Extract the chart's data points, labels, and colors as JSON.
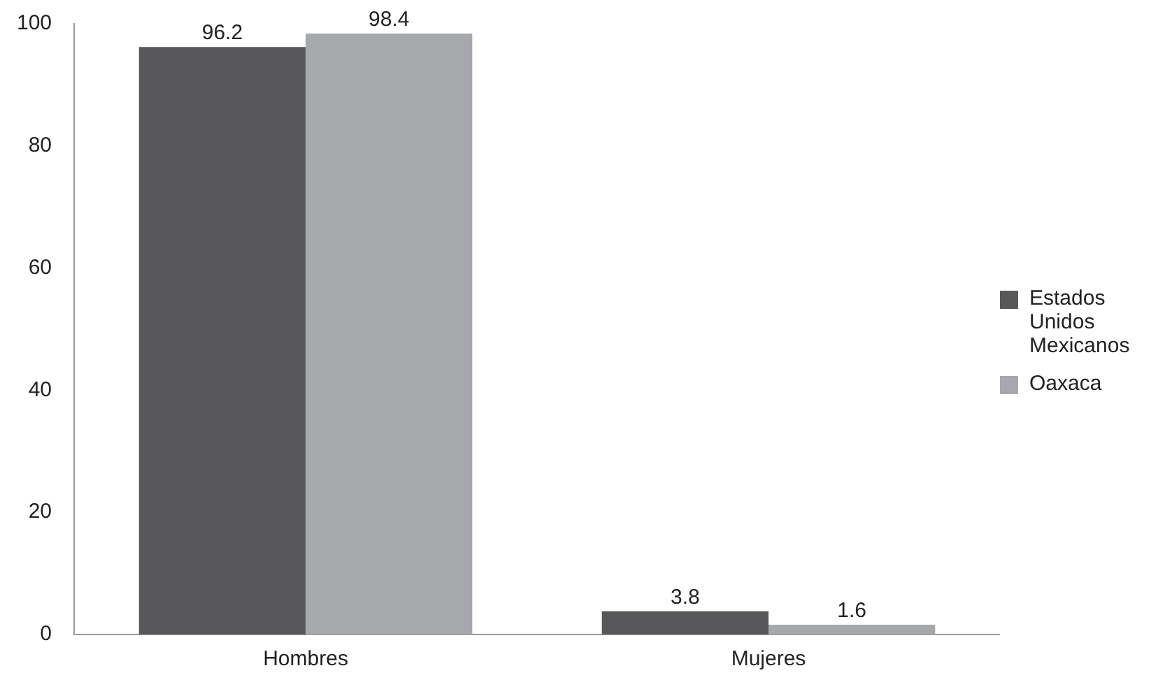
{
  "chart_data": {
    "type": "bar",
    "categories": [
      "Hombres",
      "Mujeres"
    ],
    "series": [
      {
        "name": "Estados Unidos Mexicanos",
        "color": "#58585a",
        "values": [
          96.2,
          3.8
        ]
      },
      {
        "name": "Oaxaca",
        "color": "#a7a8ab",
        "values": [
          98.4,
          1.6
        ]
      }
    ],
    "ylim": [
      0,
      100
    ],
    "yticks": [
      0,
      20,
      40,
      60,
      80,
      100
    ],
    "grid": false,
    "legend": "right",
    "data_labels": true
  }
}
